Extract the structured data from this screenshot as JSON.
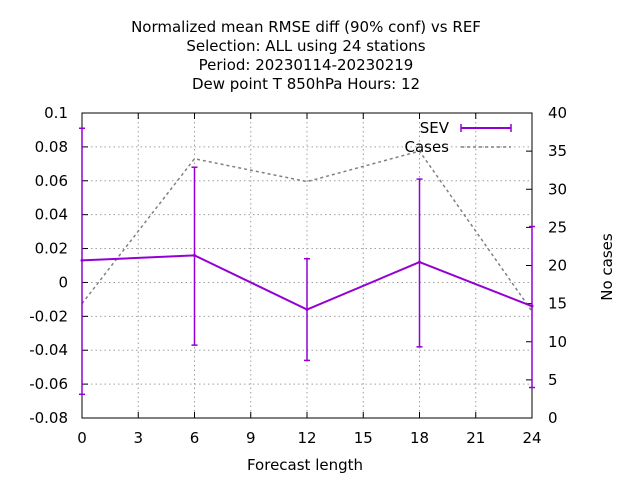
{
  "chart_data": {
    "type": "line",
    "title_lines": [
      "Normalized mean RMSE diff (90% conf) vs REF",
      "Selection: ALL using    24 stations",
      "Period: 20230114-20230219",
      "Dew point T 850hPa   Hours:  12"
    ],
    "xlabel": "Forecast length",
    "ylabel": "",
    "y2label": "No cases",
    "xlim": [
      0,
      24
    ],
    "ylim": [
      -0.08,
      0.1
    ],
    "y2lim": [
      0,
      40
    ],
    "xticks": [
      0,
      3,
      6,
      9,
      12,
      15,
      18,
      21,
      24
    ],
    "yticks": [
      -0.08,
      -0.06,
      -0.04,
      -0.02,
      0,
      0.02,
      0.04,
      0.06,
      0.08,
      0.1
    ],
    "ytick_labels": [
      "-0.08",
      "-0.06",
      "-0.04",
      "-0.02",
      "0",
      "0.02",
      "0.04",
      "0.06",
      "0.08",
      "0.1"
    ],
    "y2ticks": [
      0,
      5,
      10,
      15,
      20,
      25,
      30,
      35,
      40
    ],
    "grid": true,
    "legend_position": "top-right",
    "series": [
      {
        "name": "SEV",
        "axis": "y",
        "color": "#9400d3",
        "style": "solid-with-errorbars",
        "x": [
          0,
          6,
          12,
          18,
          24
        ],
        "values": [
          0.013,
          0.016,
          -0.016,
          0.012,
          -0.014
        ],
        "err_low": [
          -0.066,
          -0.037,
          -0.046,
          -0.038,
          -0.062
        ],
        "err_high": [
          0.091,
          0.068,
          0.014,
          0.061,
          0.033
        ]
      },
      {
        "name": "Cases",
        "axis": "y2",
        "color": "#808080",
        "style": "dashed",
        "x": [
          0,
          6,
          12,
          18,
          24
        ],
        "values": [
          15,
          34,
          31,
          35,
          14
        ]
      }
    ]
  }
}
